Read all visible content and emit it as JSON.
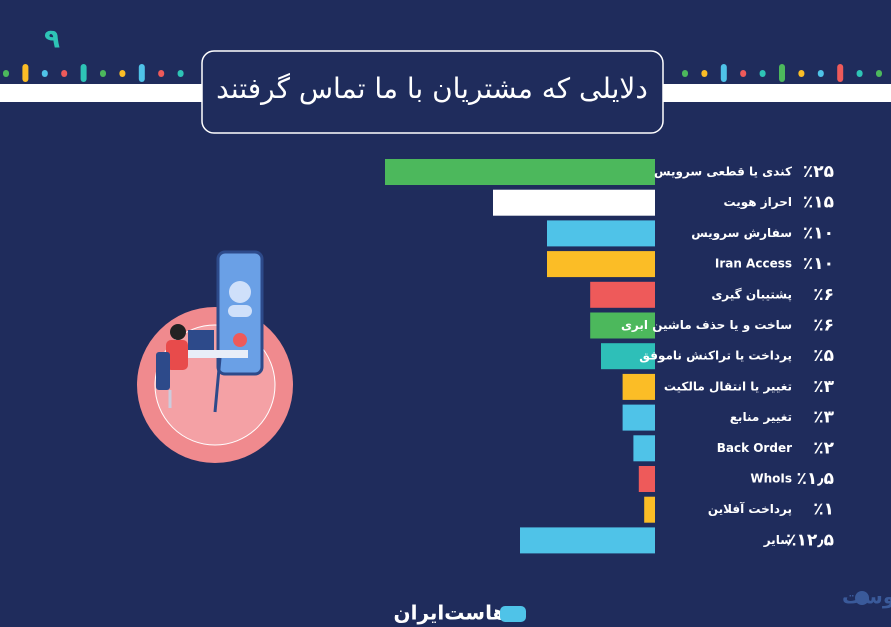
{
  "page_number": "۹",
  "footer_brand": "هاست‌ایران",
  "watermark": "بیوست",
  "chart_data": {
    "type": "bar",
    "orientation": "horizontal",
    "title": "دلایلی که مشتریان با ما تماس گرفتند",
    "categories": [
      "کندی یا قطعی سرویس",
      "احراز هویت",
      "سفارش سرویس",
      "Iran Access",
      "پشتیبان گیری",
      "ساخت و یا حذف ماشین ابری",
      "پرداخت یا تراکنش ناموفق",
      "تغییر یا انتقال مالکیت",
      "تغییر منابع",
      "Back Order",
      "WhoIs",
      "پرداخت آفلاین",
      "سایر"
    ],
    "values": [
      25,
      15,
      10,
      10,
      6,
      6,
      5,
      3,
      3,
      2,
      1.5,
      1,
      12.5
    ],
    "value_labels": [
      "٪۲۵",
      "٪۱۵",
      "٪۱۰",
      "٪۱۰",
      "٪۶",
      "٪۶",
      "٪۵",
      "٪۳",
      "٪۳",
      "٪۲",
      "٪۱٫۵",
      "٪۱",
      "٪۱۲٫۵"
    ],
    "colors": [
      "#4cb85c",
      "#ffffff",
      "#4fc3e8",
      "#fbbd26",
      "#ee5a5a",
      "#4cb85c",
      "#2ebfb8",
      "#fbbd26",
      "#4fc3e8",
      "#4fc3e8",
      "#ee5a5a",
      "#fbbd26",
      "#4fc3e8"
    ],
    "xlim": [
      0,
      25
    ]
  }
}
